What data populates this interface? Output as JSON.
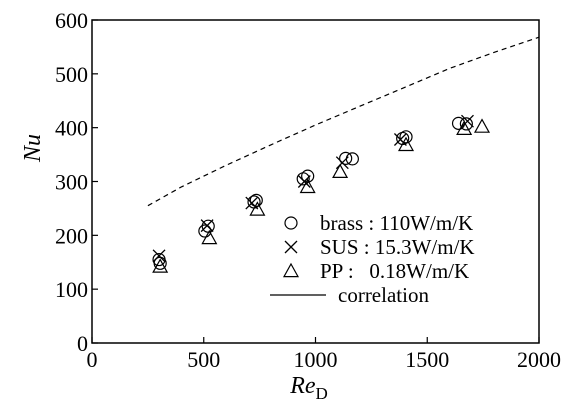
{
  "chart_data": {
    "type": "scatter",
    "xlabel": "Re",
    "xlabel_sub": "D",
    "ylabel": "Nu",
    "xlim": [
      0,
      2000
    ],
    "ylim": [
      0,
      600
    ],
    "x_ticks": [
      0,
      500,
      1000,
      1500,
      2000
    ],
    "y_ticks": [
      0,
      100,
      200,
      300,
      400,
      500,
      600
    ],
    "x_tick_labels": [
      "0",
      "500",
      "1000",
      "1500",
      "2000"
    ],
    "y_tick_labels": [
      "0",
      "100",
      "200",
      "300",
      "400",
      "500",
      "600"
    ],
    "grid": false,
    "legend_position": "bottom-right",
    "series": [
      {
        "name": "brass : 110W/m/K",
        "marker": "circle",
        "points": [
          {
            "x": 300,
            "y": 155
          },
          {
            "x": 305,
            "y": 148
          },
          {
            "x": 505,
            "y": 208
          },
          {
            "x": 520,
            "y": 217
          },
          {
            "x": 725,
            "y": 262
          },
          {
            "x": 735,
            "y": 265
          },
          {
            "x": 945,
            "y": 305
          },
          {
            "x": 965,
            "y": 310
          },
          {
            "x": 1135,
            "y": 343
          },
          {
            "x": 1165,
            "y": 342
          },
          {
            "x": 1390,
            "y": 380
          },
          {
            "x": 1405,
            "y": 383
          },
          {
            "x": 1640,
            "y": 408
          },
          {
            "x": 1675,
            "y": 407
          }
        ]
      },
      {
        "name": "SUS : 15.3W/m/K",
        "marker": "cross",
        "points": [
          {
            "x": 300,
            "y": 162
          },
          {
            "x": 515,
            "y": 218
          },
          {
            "x": 715,
            "y": 260
          },
          {
            "x": 950,
            "y": 300
          },
          {
            "x": 1120,
            "y": 335
          },
          {
            "x": 1380,
            "y": 378
          },
          {
            "x": 1680,
            "y": 412
          }
        ]
      },
      {
        "name": "PP :   0.18W/m/K",
        "marker": "triangle",
        "points": [
          {
            "x": 305,
            "y": 142
          },
          {
            "x": 525,
            "y": 195
          },
          {
            "x": 740,
            "y": 248
          },
          {
            "x": 965,
            "y": 290
          },
          {
            "x": 1110,
            "y": 318
          },
          {
            "x": 1405,
            "y": 368
          },
          {
            "x": 1665,
            "y": 398
          },
          {
            "x": 1745,
            "y": 402
          }
        ]
      },
      {
        "name": "correlation",
        "line": "dashed",
        "points": [
          {
            "x": 250,
            "y": 255
          },
          {
            "x": 400,
            "y": 290
          },
          {
            "x": 600,
            "y": 330
          },
          {
            "x": 800,
            "y": 368
          },
          {
            "x": 1000,
            "y": 405
          },
          {
            "x": 1200,
            "y": 440
          },
          {
            "x": 1400,
            "y": 475
          },
          {
            "x": 1600,
            "y": 510
          },
          {
            "x": 1800,
            "y": 540
          },
          {
            "x": 2000,
            "y": 568
          }
        ]
      }
    ],
    "legend": [
      {
        "marker": "circle",
        "label": "brass : 110W/m/K"
      },
      {
        "marker": "cross",
        "label": "SUS : 15.3W/m/K"
      },
      {
        "marker": "triangle",
        "label": "PP :   0.18W/m/K"
      },
      {
        "marker": "line",
        "label": "correlation"
      }
    ]
  }
}
